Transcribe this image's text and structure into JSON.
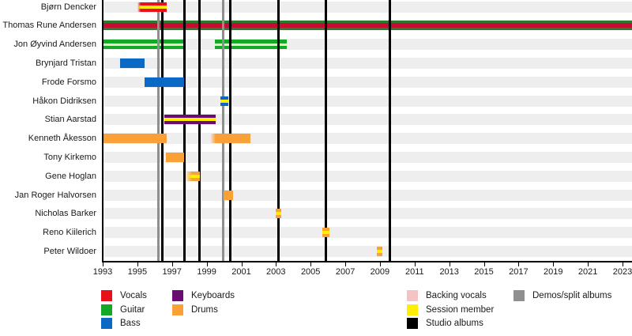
{
  "palette": {
    "vocals": "#e8101b",
    "guitar": "#14a829",
    "bass": "#0a69c5",
    "keyboards": "#6a0d73",
    "drums": "#f9a136",
    "backing_vocals": "#f5c3c6",
    "session": "#ffee00",
    "studio": "#000000",
    "demos": "#8f8f8f",
    "guitar_dark": "#2c7a2e",
    "vocals_crimson": "#c60c30",
    "light_stripe": "#ede9c9",
    "row_band": "#eeeeee"
  },
  "chart_data": {
    "type": "gantt",
    "title": "",
    "x_axis": {
      "start": 1993,
      "end": 2023.6,
      "ticks": [
        1993,
        1995,
        1997,
        1999,
        2001,
        2003,
        2005,
        2007,
        2009,
        2011,
        2013,
        2015,
        2017,
        2019,
        2021,
        2023
      ],
      "tick_labels": [
        "1993",
        "1995",
        "1997",
        "1999",
        "2001",
        "2003",
        "2005",
        "2007",
        "2009",
        "2011",
        "2013",
        "2015",
        "2017",
        "2019",
        "2021",
        "2023"
      ]
    },
    "members": [
      {
        "name": "Bjørn Dencker",
        "bars": [
          {
            "role": "vocals",
            "from": 1995.0,
            "to": 1996.7,
            "stripe": "session",
            "stripe_h": 4,
            "fade": 4
          }
        ]
      },
      {
        "name": "Thomas Rune Andersen",
        "bars": [
          {
            "role": "guitar",
            "color_key": "guitar_dark",
            "from": 1993.0,
            "to": 2023.6,
            "stripe": "vocals_crimson",
            "stripe_h": 6,
            "under": true
          }
        ]
      },
      {
        "name": "Jon Øyvind Andersen",
        "bars": [
          {
            "role": "guitar",
            "from": 1993.0,
            "to": 1997.7,
            "stripe": "light_stripe",
            "stripe_h": 3,
            "under": true
          },
          {
            "role": "guitar",
            "from": 1999.48,
            "to": 2003.62,
            "stripe": "light_stripe",
            "stripe_h": 3,
            "under": true
          }
        ]
      },
      {
        "name": "Brynjard Tristan",
        "bars": [
          {
            "role": "bass",
            "from": 1994.0,
            "to": 1995.42
          }
        ]
      },
      {
        "name": "Frode Forsmo",
        "bars": [
          {
            "role": "bass",
            "from": 1995.42,
            "to": 1997.7
          }
        ]
      },
      {
        "name": "Håkon Didriksen",
        "bars": [
          {
            "role": "bass",
            "from": 1999.79,
            "to": 2000.25,
            "stripe": "session",
            "stripe_h": 4
          }
        ]
      },
      {
        "name": "Stian Aarstad",
        "bars": [
          {
            "role": "keyboards",
            "from": 1996.56,
            "to": 1999.52,
            "stripe": "session",
            "stripe_h": 4
          }
        ]
      },
      {
        "name": "Kenneth Åkesson",
        "bars": [
          {
            "role": "drums",
            "from": 1993.0,
            "to": 1996.7
          },
          {
            "role": "drums",
            "from": 1999.2,
            "to": 2001.53,
            "fade": 7
          }
        ]
      },
      {
        "name": "Tony Kirkemo",
        "bars": [
          {
            "role": "drums",
            "from": 1996.65,
            "to": 1997.7
          }
        ]
      },
      {
        "name": "Gene Hoglan",
        "bars": [
          {
            "role": "drums",
            "from": 1997.79,
            "to": 1998.61,
            "stripe": "session",
            "stripe_h": 4,
            "fade": 8
          }
        ]
      },
      {
        "name": "Jan Roger Halvorsen",
        "bars": [
          {
            "role": "drums",
            "from": 1999.98,
            "to": 2000.52
          }
        ]
      },
      {
        "name": "Nicholas Barker",
        "bars": [
          {
            "role": "drums",
            "from": 2002.99,
            "to": 2003.3,
            "stripe": "session",
            "stripe_h": 4
          }
        ]
      },
      {
        "name": "Reno Kiilerich",
        "bars": [
          {
            "role": "drums",
            "from": 2005.68,
            "to": 2006.09,
            "stripe": "session",
            "stripe_h": 4
          }
        ]
      },
      {
        "name": "Peter Wildoer",
        "bars": [
          {
            "role": "drums",
            "from": 2008.82,
            "to": 2009.14,
            "stripe": "session",
            "stripe_h": 4
          }
        ]
      }
    ],
    "releases": [
      {
        "year": 1996.21,
        "type": "demo"
      },
      {
        "year": 1996.44,
        "type": "studio"
      },
      {
        "year": 1997.7,
        "type": "studio"
      },
      {
        "year": 1998.59,
        "type": "studio"
      },
      {
        "year": 1999.95,
        "type": "demo"
      },
      {
        "year": 2000.34,
        "type": "studio"
      },
      {
        "year": 2003.12,
        "type": "studio"
      },
      {
        "year": 2005.9,
        "type": "studio"
      },
      {
        "year": 2009.55,
        "type": "studio"
      }
    ],
    "legend_groups": [
      {
        "items": [
          {
            "label": "Vocals",
            "key": "vocals"
          },
          {
            "label": "Guitar",
            "key": "guitar"
          },
          {
            "label": "Bass",
            "key": "bass"
          }
        ]
      },
      {
        "items": [
          {
            "label": "Keyboards",
            "key": "keyboards"
          },
          {
            "label": "Drums",
            "key": "drums"
          }
        ]
      },
      {
        "items": [
          {
            "label": "Backing vocals",
            "key": "backing_vocals"
          },
          {
            "label": "Session member",
            "key": "session"
          },
          {
            "label": "Studio albums",
            "key": "studio"
          }
        ]
      },
      {
        "items": [
          {
            "label": "Demos/split albums",
            "key": "demos"
          }
        ]
      }
    ]
  }
}
